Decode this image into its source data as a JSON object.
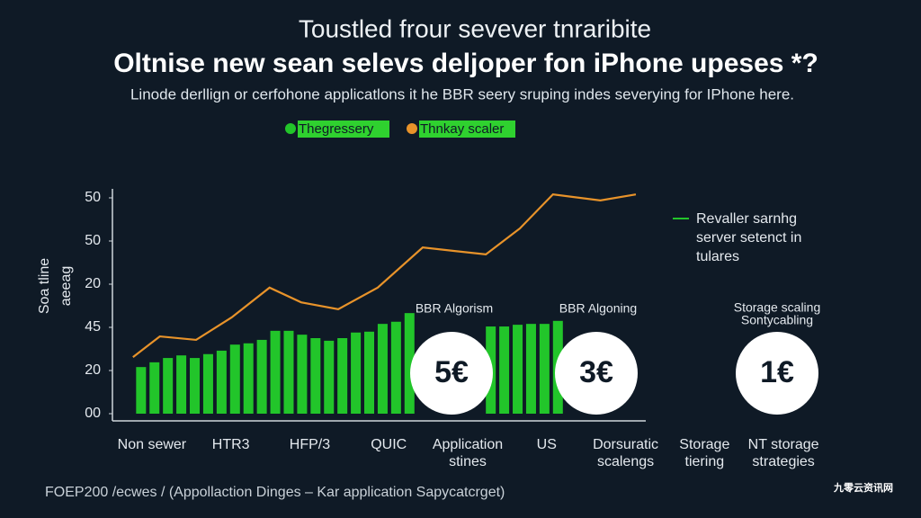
{
  "chart_data": {
    "type": "bar",
    "supertitle": "Toustled frour sevever tnraribite",
    "title": "Oltnise new sean selevs deljoper fon iPhone upeses *?",
    "subtitle": "Linode derllign or cerfohone applicatlons it he BBR seery sruping indes severying for IPhone here.",
    "y_label": [
      "Soa tline",
      "aeeag"
    ],
    "categories": [
      [
        "Non sewer"
      ],
      [
        "HTR3"
      ],
      [
        "HFP/3"
      ],
      [
        "QUIC"
      ],
      [
        "Application",
        "stines"
      ],
      [
        "US"
      ],
      [
        "Dorsuratic",
        "scalengs"
      ],
      [
        "Storage",
        "tiering"
      ],
      [
        "NT storage",
        "strategies"
      ]
    ],
    "xlim": [
      0,
      9
    ],
    "ylim": [
      0,
      5.2
    ],
    "yticks": [
      {
        "value": 0,
        "label": "00"
      },
      {
        "value": 1,
        "label": "20"
      },
      {
        "value": 2,
        "label": "45"
      },
      {
        "value": 3,
        "label": "20"
      },
      {
        "value": 4,
        "label": "50"
      },
      {
        "value": 5,
        "label": "50"
      }
    ],
    "series": [
      {
        "name": "Thegressery",
        "color": "#22c52a",
        "type": "bar",
        "x": [
          0.3,
          0.47,
          0.64,
          0.81,
          0.98,
          1.15,
          1.32,
          1.49,
          1.66,
          1.83,
          2.0,
          2.17,
          2.34,
          2.51,
          2.68,
          2.85,
          3.02,
          3.19,
          3.36,
          3.53,
          3.7,
          4.73,
          4.9,
          5.07,
          5.24,
          5.41,
          5.58
        ],
        "values": [
          1.08,
          1.19,
          1.29,
          1.35,
          1.29,
          1.38,
          1.46,
          1.6,
          1.63,
          1.71,
          1.92,
          1.92,
          1.83,
          1.75,
          1.69,
          1.75,
          1.88,
          1.9,
          2.08,
          2.13,
          2.33,
          2.02,
          2.02,
          2.06,
          2.08,
          2.08,
          2.15
        ]
      },
      {
        "name": "Thnkay scaler",
        "color": "#e8932a",
        "type": "line",
        "x": [
          0.26,
          0.6,
          1.06,
          1.51,
          1.99,
          2.39,
          2.86,
          3.36,
          3.93,
          4.73,
          5.16,
          5.58,
          6.18,
          6.63
        ],
        "values": [
          1.31,
          1.79,
          1.71,
          2.23,
          2.92,
          2.58,
          2.42,
          2.92,
          3.85,
          3.69,
          4.29,
          5.08,
          4.94,
          5.08
        ]
      }
    ],
    "annotations": [
      [
        "BBR Algorism"
      ],
      [
        "BBR Algoning"
      ],
      [
        "Storage scaling",
        "Sontycabling"
      ]
    ],
    "badges": [
      "5€",
      "3€",
      "1€"
    ],
    "side_note": [
      "Revaller sarnhg",
      "server setenct in",
      "tulares"
    ],
    "footer": "FOEP200 /ecwes / (Appollaction Dinges – Kar application Sapycatcrget)",
    "watermark": "九零云资讯网"
  }
}
